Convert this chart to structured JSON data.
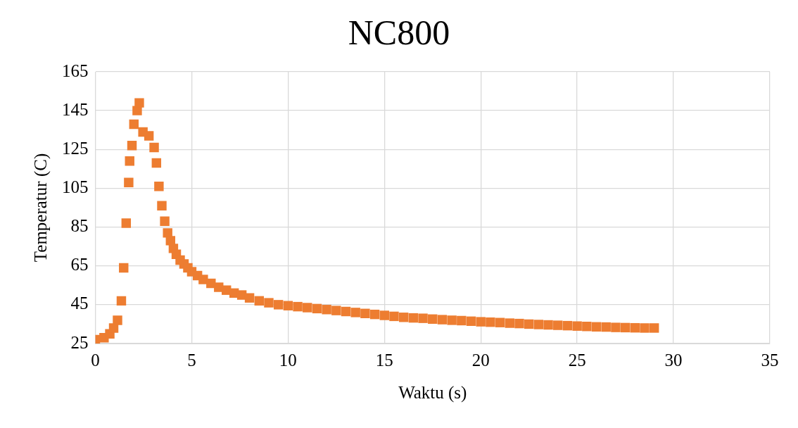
{
  "chart_data": {
    "type": "scatter",
    "title": "NC800",
    "xlabel": "Waktu (s)",
    "ylabel": "Temperatur (C)",
    "xlim": [
      0,
      35
    ],
    "xticks": [
      0,
      5,
      10,
      15,
      20,
      25,
      30,
      35
    ],
    "ylim": [
      25,
      165
    ],
    "yticks": [
      25,
      45,
      65,
      85,
      105,
      125,
      145,
      165
    ],
    "grid": true,
    "marker": "square",
    "legend": false,
    "series": [
      {
        "color": "#ed7d31",
        "x": [
          0,
          0.45,
          0.75,
          0.95,
          1.15,
          1.35,
          1.47,
          1.6,
          1.73,
          1.78,
          1.9,
          2.0,
          2.17,
          2.28,
          2.47,
          2.78,
          3.05,
          3.17,
          3.3,
          3.45,
          3.6,
          3.75,
          3.9,
          4.05,
          4.2,
          4.4,
          4.6,
          4.8,
          5.0,
          5.3,
          5.6,
          6.0,
          6.4,
          6.8,
          7.2,
          7.6,
          8.0,
          8.5,
          9.0,
          9.5,
          10,
          10.5,
          11,
          11.5,
          12,
          12.5,
          13,
          13.5,
          14,
          14.5,
          15,
          15.5,
          16,
          16.5,
          17,
          17.5,
          18,
          18.5,
          19,
          19.5,
          20,
          20.5,
          21,
          21.5,
          22,
          22.5,
          23,
          23.5,
          24,
          24.5,
          25,
          25.5,
          26,
          26.5,
          27,
          27.5,
          28,
          28.5,
          29
        ],
        "values": [
          27,
          28,
          30,
          33,
          37,
          47,
          64,
          87,
          108,
          119,
          127,
          138,
          145,
          149,
          134,
          132,
          126,
          118,
          106,
          96,
          88,
          82,
          78,
          74,
          71,
          68,
          66,
          64,
          62,
          60,
          58,
          56,
          54,
          52.5,
          51,
          50,
          48.5,
          47,
          46,
          45,
          44.5,
          44,
          43.5,
          43,
          42.5,
          42,
          41.5,
          41,
          40.5,
          40,
          39.5,
          39,
          38.5,
          38.2,
          38,
          37.6,
          37.3,
          37,
          36.8,
          36.5,
          36.2,
          36,
          35.8,
          35.5,
          35.3,
          35,
          34.8,
          34.6,
          34.4,
          34.2,
          34,
          33.8,
          33.6,
          33.5,
          33.3,
          33.2,
          33.1,
          33,
          33
        ]
      }
    ]
  }
}
